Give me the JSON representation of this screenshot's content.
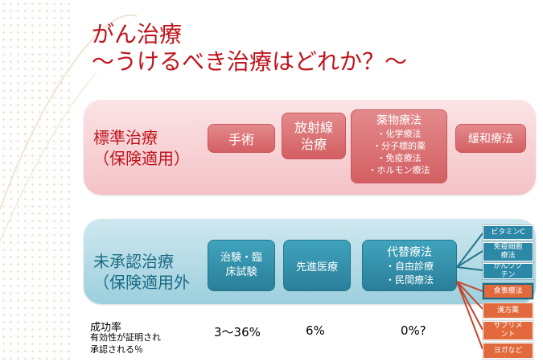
{
  "title": {
    "line1": "がん治療",
    "line2": "～うけるべき治療はどれか？～"
  },
  "standard": {
    "label": "標準治療\n（保険適用）",
    "surgery": "手術",
    "radiation": "放射線\n治療",
    "drug": {
      "title": "薬物療法",
      "items": [
        "・化学療法",
        "・分子標的薬",
        "・免疫療法",
        "・ホルモン療法"
      ]
    },
    "palliative": "緩和療法"
  },
  "unapproved": {
    "label": "未承認治療\n（保険適用外",
    "trial": "治験・臨\n床試験",
    "advanced": "先進医療",
    "alternative": {
      "title": "代替療法",
      "items": [
        "・自由診療",
        "・民間療法"
      ]
    }
  },
  "side_items": {
    "blue": [
      "ビタミンC",
      "免疫細胞\n療法",
      "がんワク\nチン"
    ],
    "orange": [
      "食事療法",
      "漢方薬",
      "サプリメ\nント",
      "ヨガなど"
    ]
  },
  "success": {
    "label": "成功率",
    "desc": "有効性が証明され\n承認される％",
    "trial_rate": "3～36%",
    "advanced_rate": "6%",
    "alternative_rate": "0%?"
  },
  "colors": {
    "title": "#c0141c",
    "red_box": "#d96b6e",
    "blue_box": "#2f8aa5",
    "orange_box": "#e2693c"
  }
}
